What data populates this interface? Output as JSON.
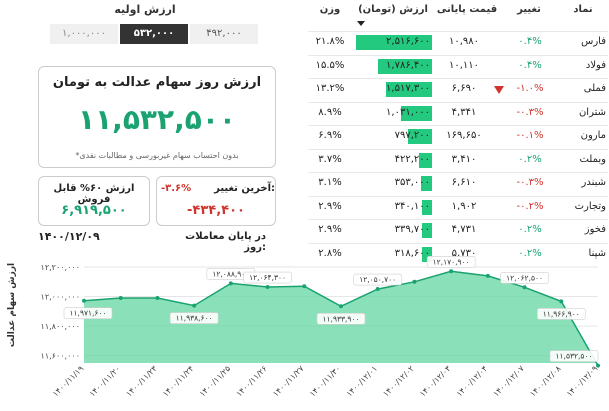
{
  "initial": {
    "title": "ارزش اولیه",
    "values": [
      "۱,۰۰۰,۰۰۰",
      "۵۳۲,۰۰۰",
      "۴۹۲,۰۰۰"
    ]
  },
  "summary": {
    "title": "ارزش روز سهام عدالت به تومان",
    "value": "۱۱,۵۳۲,۵۰۰",
    "note": "*بدون احتساب سهام غیربورسی و مطالبات نقدی",
    "sellable_title": "ارزش ۶۰% قابل فروش",
    "sellable_value": "۶,۹۱۹,۵۰۰",
    "change_title": "آخرین تغییر:",
    "change_pct": "-۳.۶%",
    "change_value": "-۴۳۴,۴۰۰",
    "date_label": "در پایان معاملات روز:",
    "date": "۱۴۰۰/۱۲/۰۹",
    "colors": {
      "green": "#1aa371",
      "red": "#d0342c"
    }
  },
  "table": {
    "headers": {
      "symbol": "نماد",
      "change": "تغییر",
      "price": "قیمت پایانی",
      "value": "ارزش (تومان)",
      "weight": "وزن"
    },
    "rows": [
      {
        "symbol": "فارس",
        "change": "۰.۴%",
        "neg": false,
        "price": "۱۰,۹۸۰",
        "value": "۲,۵۱۶,۶۰۰",
        "v": 2516600,
        "weight": "۲۱.۸%"
      },
      {
        "symbol": "فولاد",
        "change": "۰.۴%",
        "neg": false,
        "price": "۱۰,۱۱۰",
        "value": "۱,۷۸۶,۴۰۰",
        "v": 1786400,
        "weight": "۱۵.۵%"
      },
      {
        "symbol": "فملی",
        "change": "-۱.۰%",
        "neg": true,
        "down_icon": true,
        "price": "۶,۶۹۰",
        "value": "۱,۵۱۷,۳۰۰",
        "v": 1517300,
        "weight": "۱۳.۲%"
      },
      {
        "symbol": "شتران",
        "change": "-۰.۳%",
        "neg": true,
        "price": "۴,۳۴۱",
        "value": "۱,۰۳۱,۰۰۰",
        "v": 1031000,
        "weight": "۸.۹%"
      },
      {
        "symbol": "مارون",
        "change": "-۰.۱%",
        "neg": true,
        "price": "۱۶۹,۶۵۰",
        "value": "۷۹۷,۲۰۰",
        "v": 797200,
        "weight": "۶.۹%"
      },
      {
        "symbol": "وبملت",
        "change": "۰.۲%",
        "neg": false,
        "price": "۳,۴۱۰",
        "value": "۴۲۲,۲۰۰",
        "v": 422200,
        "weight": "۳.۷%"
      },
      {
        "symbol": "شبندر",
        "change": "-۰.۳%",
        "neg": true,
        "price": "۶,۶۱۰",
        "value": "۳۵۳,۰۰۰",
        "v": 353000,
        "weight": "۳.۱%"
      },
      {
        "symbol": "وتجارت",
        "change": "-۰.۲%",
        "neg": true,
        "price": "۱,۹۰۲",
        "value": "۳۴۰,۱۰۰",
        "v": 340100,
        "weight": "۲.۹%"
      },
      {
        "symbol": "فخوز",
        "change": "۰.۲%",
        "neg": false,
        "price": "۴,۷۳۱",
        "value": "۳۳۹,۷۰۰",
        "v": 339700,
        "weight": "۲.۹%"
      },
      {
        "symbol": "شپنا",
        "change": "۰.۲%",
        "neg": false,
        "price": "۵,۷۳۰",
        "value": "۳۱۸,۶۰۰",
        "v": 318600,
        "weight": "۲.۸%"
      }
    ]
  },
  "chart_data": {
    "type": "area",
    "ylabel": "ارزش سهام عدالت",
    "ylim": [
      11550000,
      12200000
    ],
    "yticks": [
      11600000,
      11800000,
      12000000,
      12200000
    ],
    "ytick_labels": [
      "۱۱,۶۰۰,۰۰۰",
      "۱۱,۸۰۰,۰۰۰",
      "۱۲,۰۰۰,۰۰۰",
      "۱۲,۲۰۰,۰۰۰"
    ],
    "x": [
      "۱۴۰۰/۱۱/۱۹",
      "۱۴۰۰/۱۱/۲۰",
      "۱۴۰۰/۱۱/۲۳",
      "۱۴۰۰/۱۱/۲۴",
      "۱۴۰۰/۱۱/۲۵",
      "۱۴۰۰/۱۱/۲۶",
      "۱۴۰۰/۱۱/۲۷",
      "۱۴۰۰/۱۱/۳۰",
      "۱۴۰۰/۱۲/۰۱",
      "۱۴۰۰/۱۲/۰۲",
      "۱۴۰۰/۱۲/۰۳",
      "۱۴۰۰/۱۲/۰۴",
      "۱۴۰۰/۱۲/۰۷",
      "۱۴۰۰/۱۲/۰۸",
      "۱۴۰۰/۱۲/۰۹"
    ],
    "values": [
      11971600,
      11990000,
      11990000,
      11938600,
      12088900,
      12064300,
      12070000,
      11933900,
      12050700,
      12100000,
      12170900,
      12140000,
      12062500,
      11966900,
      11532500
    ],
    "point_labels": [
      {
        "i": 0,
        "text": "۱۱,۹۷۱,۶۰۰",
        "pos": "below"
      },
      {
        "i": 3,
        "text": "۱۱,۹۳۸,۶۰۰",
        "pos": "below"
      },
      {
        "i": 4,
        "text": "۱۲,۰۸۸,۹۰۰",
        "pos": "above"
      },
      {
        "i": 5,
        "text": "۱۲,۰۶۴,۳۰۰",
        "pos": "above"
      },
      {
        "i": 7,
        "text": "۱۱,۹۳۳,۹۰۰",
        "pos": "below"
      },
      {
        "i": 8,
        "text": "۱۲,۰۵۰,۷۰۰",
        "pos": "above"
      },
      {
        "i": 10,
        "text": "۱۲,۱۷۰,۹۰۰",
        "pos": "above"
      },
      {
        "i": 12,
        "text": "۱۲,۰۶۲,۵۰۰",
        "pos": "above"
      },
      {
        "i": 13,
        "text": "۱۱,۹۶۶,۹۰۰",
        "pos": "below"
      },
      {
        "i": 14,
        "text": "۱۱,۵۳۲,۵۰۰",
        "pos": "above"
      }
    ],
    "colors": {
      "line": "#1aa371",
      "fill": "#63d6a0"
    }
  }
}
